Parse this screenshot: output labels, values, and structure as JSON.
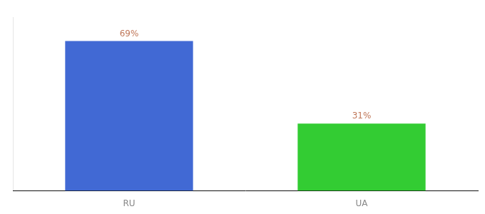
{
  "chart_data": {
    "type": "bar",
    "categories": [
      "RU",
      "UA"
    ],
    "values": [
      69,
      31
    ],
    "value_labels": [
      "69%",
      "31%"
    ],
    "colors": [
      "#4169d4",
      "#33cc33"
    ],
    "ylim": [
      0,
      80
    ],
    "yticks": [],
    "grid": false,
    "data_labels": true,
    "tick_labels": "x"
  }
}
